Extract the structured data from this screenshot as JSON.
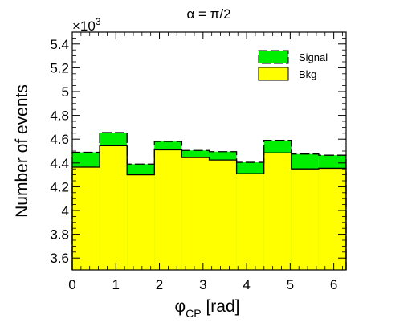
{
  "chart_data": {
    "type": "bar",
    "subtype": "stacked-histogram",
    "title": "α = π/2",
    "xlabel": "φ",
    "xlabel_subscript": "CP",
    "xlabel_unit": " [rad]",
    "ylabel": "Number of events",
    "y_exponent": "×10",
    "y_exponent_power": "3",
    "xlim": [
      0,
      6.2832
    ],
    "ylim": [
      3.5,
      5.5
    ],
    "x_ticks": [
      0,
      1,
      2,
      3,
      4,
      5,
      6
    ],
    "x_tick_labels": [
      "0",
      "1",
      "2",
      "3",
      "4",
      "5",
      "6"
    ],
    "y_ticks": [
      3.6,
      3.8,
      4.0,
      4.2,
      4.4,
      4.6,
      4.8,
      5.0,
      5.2,
      5.4
    ],
    "y_tick_labels": [
      "3.6",
      "3.8",
      "4",
      "4.2",
      "4.4",
      "4.6",
      "4.8",
      "5",
      "5.2",
      "5.4"
    ],
    "bin_edges": [
      0,
      0.6283,
      1.2566,
      1.885,
      2.5133,
      3.1416,
      3.7699,
      4.3982,
      5.0265,
      5.6549,
      6.2832
    ],
    "series": [
      {
        "name": "Bkg",
        "color": "#ffff00",
        "values": [
          4.365,
          4.545,
          4.3,
          4.51,
          4.445,
          4.425,
          4.31,
          4.485,
          4.35,
          4.355
        ]
      },
      {
        "name": "Signal",
        "color": "#00ee00",
        "stacked_total": [
          4.49,
          4.655,
          4.39,
          4.58,
          4.505,
          4.495,
          4.405,
          4.59,
          4.475,
          4.465
        ]
      }
    ],
    "legend": {
      "placement": "top-right",
      "entries": [
        {
          "label": "Signal",
          "color": "#00ee00",
          "style": "dashed-border"
        },
        {
          "label": "Bkg",
          "color": "#ffff00",
          "style": "solid-border"
        }
      ]
    },
    "grid": false
  }
}
